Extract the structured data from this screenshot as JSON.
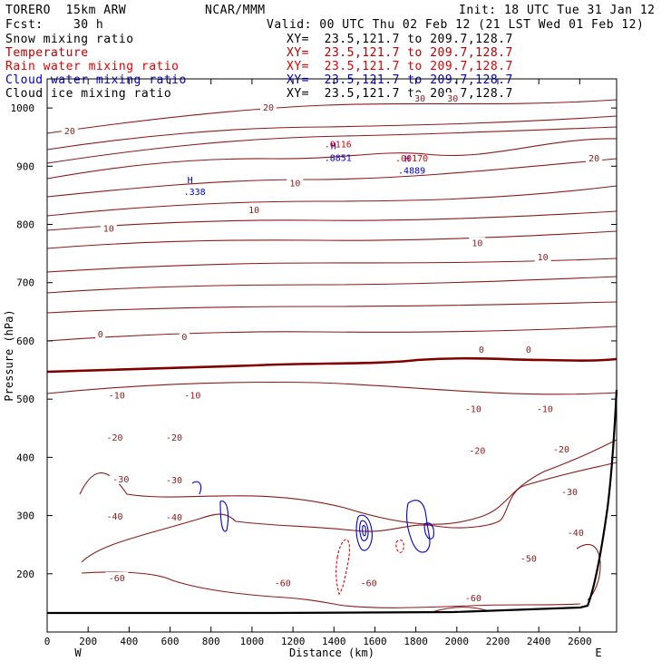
{
  "header": {
    "model": "TORERO  15km ARW",
    "center": "NCAR/MMM",
    "init": "Init: 18 UTC Tue 31 Jan 12",
    "fcst": "Fcst:    30 h",
    "valid": "Valid: 00 UTC Thu 02 Feb 12 (21 LST Wed 01 Feb 12)"
  },
  "fields": [
    {
      "label": "Snow mixing ratio",
      "xy": "XY=  23.5,121.7 to 209.7,128.7",
      "color": "#000000"
    },
    {
      "label": "Temperature",
      "xy": "XY=  23.5,121.7 to 209.7,128.7",
      "color": "#b40000"
    },
    {
      "label": "Rain water mixing ratio",
      "xy": "XY=  23.5,121.7 to 209.7,128.7",
      "color": "#e00000"
    },
    {
      "label": "Cloud water mixing ratio",
      "xy": "XY=  23.5,121.7 to 209.7,128.7",
      "color": "#0000c8"
    },
    {
      "label": "Cloud ice mixing ratio",
      "xy": "XY=  23.5,121.7 to 209.7,128.7",
      "color": "#000000"
    }
  ],
  "chart_data": {
    "type": "contour-cross-section",
    "xlabel": "Distance (km)",
    "ylabel": "Pressure (hPa)",
    "xlim": [
      0,
      2780
    ],
    "ylim": [
      1050,
      100
    ],
    "x_ticks": [
      0,
      200,
      400,
      600,
      800,
      1000,
      1200,
      1400,
      1600,
      1800,
      2000,
      2200,
      2400,
      2600
    ],
    "y_ticks": [
      200,
      300,
      400,
      500,
      600,
      700,
      800,
      900,
      1000
    ],
    "west_label": "W",
    "east_label": "E",
    "temperature_color": "#8b1a1a",
    "zero_isotherm_color": "#800000",
    "isotherm_labels": [
      {
        "text": "-60",
        "x": 340,
        "p": 192
      },
      {
        "text": "-60",
        "x": 1150,
        "p": 183
      },
      {
        "text": "-60",
        "x": 1570,
        "p": 183
      },
      {
        "text": "-60",
        "x": 2080,
        "p": 158
      },
      {
        "text": "-50",
        "x": 2350,
        "p": 225
      },
      {
        "text": "-40",
        "x": 330,
        "p": 298
      },
      {
        "text": "-40",
        "x": 620,
        "p": 296
      },
      {
        "text": "-40",
        "x": 2580,
        "p": 270
      },
      {
        "text": "-30",
        "x": 360,
        "p": 362
      },
      {
        "text": "-30",
        "x": 620,
        "p": 360
      },
      {
        "text": "-30",
        "x": 2550,
        "p": 340
      },
      {
        "text": "-20",
        "x": 330,
        "p": 433
      },
      {
        "text": "-20",
        "x": 620,
        "p": 433
      },
      {
        "text": "-20",
        "x": 2100,
        "p": 411
      },
      {
        "text": "-20",
        "x": 2510,
        "p": 413
      },
      {
        "text": "-10",
        "x": 340,
        "p": 506
      },
      {
        "text": "-10",
        "x": 710,
        "p": 506
      },
      {
        "text": "-10",
        "x": 2080,
        "p": 482
      },
      {
        "text": "-10",
        "x": 2430,
        "p": 482
      },
      {
        "text": "0",
        "x": 260,
        "p": 611
      },
      {
        "text": "0",
        "x": 670,
        "p": 606
      },
      {
        "text": "0",
        "x": 2120,
        "p": 584
      },
      {
        "text": "0",
        "x": 2350,
        "p": 584
      },
      {
        "text": "10",
        "x": 300,
        "p": 792
      },
      {
        "text": "10",
        "x": 1010,
        "p": 824
      },
      {
        "text": "10",
        "x": 1210,
        "p": 870
      },
      {
        "text": "10",
        "x": 2100,
        "p": 767
      },
      {
        "text": "10",
        "x": 2420,
        "p": 743
      },
      {
        "text": "20",
        "x": 110,
        "p": 960
      },
      {
        "text": "20",
        "x": 1080,
        "p": 1000
      },
      {
        "text": "20",
        "x": 2670,
        "p": 913
      },
      {
        "text": "30",
        "x": 1820,
        "p": 1016
      },
      {
        "text": "30",
        "x": 1980,
        "p": 1016
      }
    ],
    "cloud_max_labels": [
      {
        "mark": "H",
        "value": ".338",
        "x": 720,
        "p": 855,
        "color": "#0000c8"
      },
      {
        "mark": "H",
        "value": ".8851",
        "x": 1420,
        "p": 914,
        "color": "#0000c8"
      },
      {
        "mark": "",
        "value": ".0116",
        "x": 1420,
        "p": 937,
        "color": "#e00000"
      },
      {
        "mark": "H",
        "value": ".4889",
        "x": 1780,
        "p": 892,
        "color": "#0000c8"
      },
      {
        "mark": "",
        "value": ".00170",
        "x": 1780,
        "p": 913,
        "color": "#e00000"
      }
    ]
  }
}
